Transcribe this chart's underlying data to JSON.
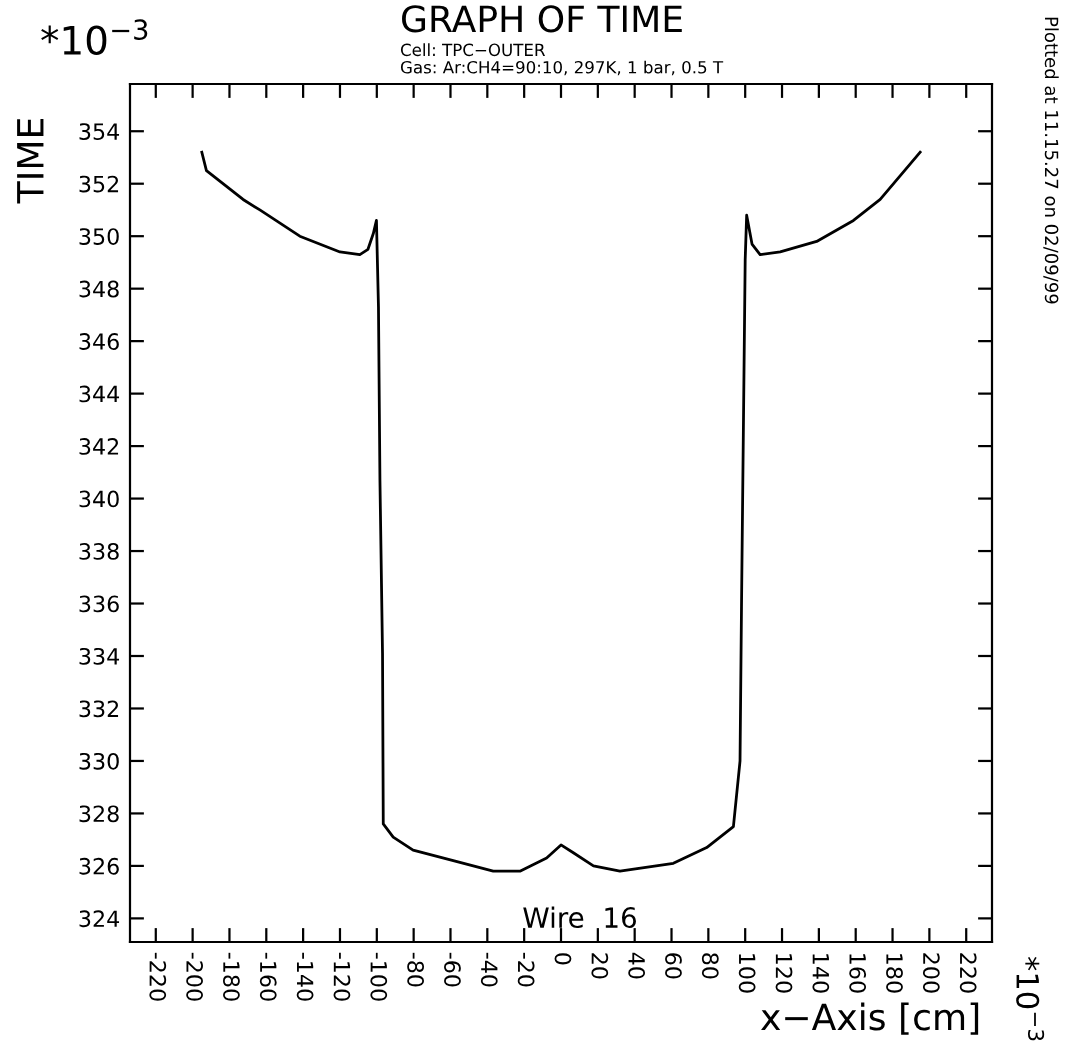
{
  "chart_data": {
    "type": "line",
    "title": "GRAPH OF TIME",
    "subtitle": "Cell: TPC−OUTER\nGas: Ar:CH4=90:10, 297K, 1 bar, 0.5 T",
    "xlabel": "x−Axis [cm]",
    "ylabel": "TIME",
    "annotations": [
      "*10$^{−3}$",
      "*10$^{−3}$",
      "Wire  16",
      "Plotted at 11.15.27 on 02/09/99"
    ],
    "series": [
      {
        "color": "#000000",
        "x": [
          -195,
          -192.5,
          -172.6,
          -163.5,
          -141.8,
          -120,
          -109.2,
          -104.8,
          -101.9,
          -100.2,
          -99.1,
          -98.3,
          -96.9,
          -96.5,
          -91.1,
          -80.3,
          -58.5,
          -36.8,
          -22.3,
          -7.8,
          0,
          6.7,
          17.6,
          32,
          61,
          79.1,
          93.6,
          97.2,
          98,
          99,
          100,
          100.8,
          103.7,
          108.1,
          119,
          138.8,
          158.8,
          173.3,
          195
        ],
        "values": [
          353.2,
          352.5,
          351.4,
          351.0,
          350.0,
          349.4,
          349.3,
          349.5,
          350.1,
          350.6,
          347.3,
          340.7,
          334.1,
          327.6,
          327.1,
          326.6,
          326.2,
          325.8,
          325.8,
          326.3,
          326.8,
          326.5,
          326.0,
          325.8,
          326.1,
          326.7,
          327.5,
          330.0,
          335.9,
          342.5,
          349.1,
          350.8,
          349.7,
          349.3,
          349.4,
          349.8,
          350.6,
          351.4,
          353.2
        ]
      }
    ],
    "xlim": [
      -234,
      234
    ],
    "ylim": [
      323.1,
      355.8
    ],
    "xticks": [
      -220,
      -200,
      -180,
      -160,
      -140,
      -120,
      -100,
      -80,
      -60,
      -40,
      -20,
      0,
      20,
      40,
      60,
      80,
      100,
      120,
      140,
      160,
      180,
      200,
      220
    ],
    "yticks": [
      324,
      326,
      328,
      330,
      332,
      334,
      336,
      338,
      340,
      342,
      344,
      346,
      348,
      350,
      352,
      354
    ],
    "grid": false,
    "legend": false,
    "marker": "none",
    "line_style": "solid"
  }
}
